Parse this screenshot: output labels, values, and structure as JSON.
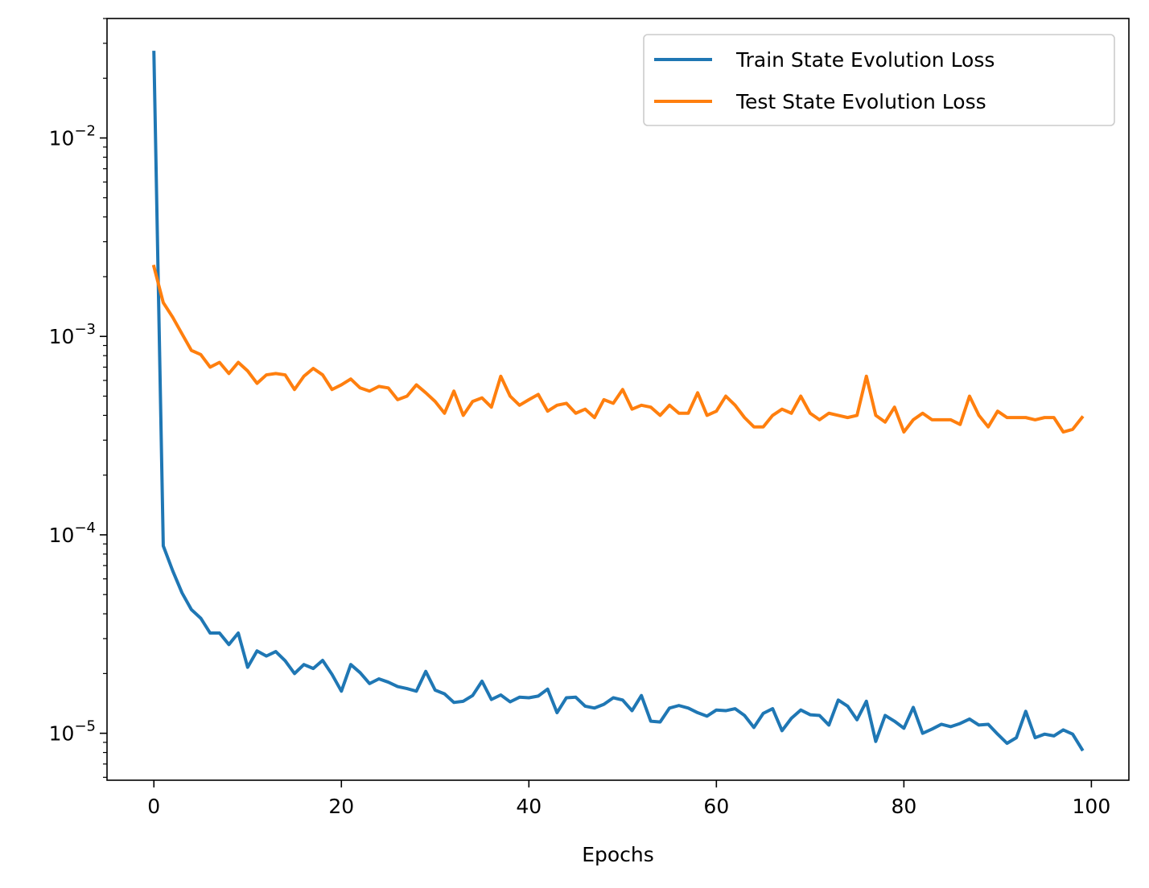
{
  "chart_data": {
    "type": "line",
    "title": "",
    "xlabel": "Epochs",
    "ylabel": "",
    "yscale": "log",
    "xlim": [
      -5,
      104
    ],
    "ylim": [
      5.8e-06,
      0.04
    ],
    "xticks": [
      0,
      20,
      40,
      60,
      80,
      100
    ],
    "xtick_labels": [
      "0",
      "20",
      "40",
      "60",
      "80",
      "100"
    ],
    "yticks": [
      1e-05,
      0.0001,
      0.001,
      0.01
    ],
    "ytick_labels": [
      {
        "base": "10",
        "exp": "−5"
      },
      {
        "base": "10",
        "exp": "−4"
      },
      {
        "base": "10",
        "exp": "−3"
      },
      {
        "base": "10",
        "exp": "−2"
      }
    ],
    "grid": false,
    "legend_position": "upper-right",
    "series": [
      {
        "name": "Train State Evolution Loss",
        "color": "#1f77b4",
        "values": [
          0.027,
          8.8e-05,
          6.6e-05,
          5.1e-05,
          4.2e-05,
          3.8e-05,
          3.2e-05,
          3.2e-05,
          2.8e-05,
          3.2e-05,
          2.15e-05,
          2.6e-05,
          2.45e-05,
          2.58e-05,
          2.32e-05,
          2e-05,
          2.22e-05,
          2.12e-05,
          2.33e-05,
          1.98e-05,
          1.63e-05,
          2.22e-05,
          2.02e-05,
          1.78e-05,
          1.88e-05,
          1.81e-05,
          1.72e-05,
          1.68e-05,
          1.63e-05,
          2.05e-05,
          1.65e-05,
          1.58e-05,
          1.43e-05,
          1.45e-05,
          1.55e-05,
          1.83e-05,
          1.48e-05,
          1.56e-05,
          1.44e-05,
          1.52e-05,
          1.51e-05,
          1.54e-05,
          1.67e-05,
          1.27e-05,
          1.51e-05,
          1.52e-05,
          1.37e-05,
          1.34e-05,
          1.4e-05,
          1.51e-05,
          1.47e-05,
          1.3e-05,
          1.55e-05,
          1.15e-05,
          1.14e-05,
          1.34e-05,
          1.38e-05,
          1.34e-05,
          1.27e-05,
          1.22e-05,
          1.31e-05,
          1.3e-05,
          1.33e-05,
          1.23e-05,
          1.07e-05,
          1.26e-05,
          1.33e-05,
          1.03e-05,
          1.19e-05,
          1.31e-05,
          1.24e-05,
          1.23e-05,
          1.1e-05,
          1.47e-05,
          1.37e-05,
          1.17e-05,
          1.45e-05,
          9.1e-06,
          1.23e-05,
          1.15e-05,
          1.06e-05,
          1.35e-05,
          1e-05,
          1.05e-05,
          1.11e-05,
          1.08e-05,
          1.12e-05,
          1.18e-05,
          1.1e-05,
          1.11e-05,
          9.9e-06,
          8.9e-06,
          9.5e-06,
          1.29e-05,
          9.5e-06,
          9.9e-06,
          9.7e-06,
          1.04e-05,
          9.9e-06,
          8.3e-06
        ]
      },
      {
        "name": "Test State Evolution Loss",
        "color": "#ff7f0e",
        "values": [
          0.00225,
          0.00148,
          0.00125,
          0.00103,
          0.00085,
          0.00081,
          0.0007,
          0.00074,
          0.00065,
          0.00074,
          0.00067,
          0.00058,
          0.00064,
          0.00065,
          0.00064,
          0.00054,
          0.00063,
          0.00069,
          0.00064,
          0.00054,
          0.00057,
          0.00061,
          0.00055,
          0.00053,
          0.00056,
          0.00055,
          0.00048,
          0.0005,
          0.00057,
          0.00052,
          0.00047,
          0.00041,
          0.00053,
          0.0004,
          0.00047,
          0.00049,
          0.00044,
          0.00063,
          0.0005,
          0.00045,
          0.00048,
          0.00051,
          0.00042,
          0.00045,
          0.00046,
          0.00041,
          0.00043,
          0.00039,
          0.00048,
          0.00046,
          0.00054,
          0.00043,
          0.00045,
          0.00044,
          0.0004,
          0.00045,
          0.00041,
          0.00041,
          0.00052,
          0.0004,
          0.00042,
          0.0005,
          0.00045,
          0.00039,
          0.00035,
          0.00035,
          0.0004,
          0.00043,
          0.00041,
          0.0005,
          0.00041,
          0.00038,
          0.00041,
          0.0004,
          0.00039,
          0.0004,
          0.00063,
          0.0004,
          0.00037,
          0.00044,
          0.00033,
          0.00038,
          0.00041,
          0.00038,
          0.00038,
          0.00038,
          0.00036,
          0.0005,
          0.0004,
          0.00035,
          0.00042,
          0.00039,
          0.00039,
          0.00039,
          0.00038,
          0.00039,
          0.00039,
          0.00033,
          0.00034,
          0.00039
        ]
      }
    ]
  }
}
